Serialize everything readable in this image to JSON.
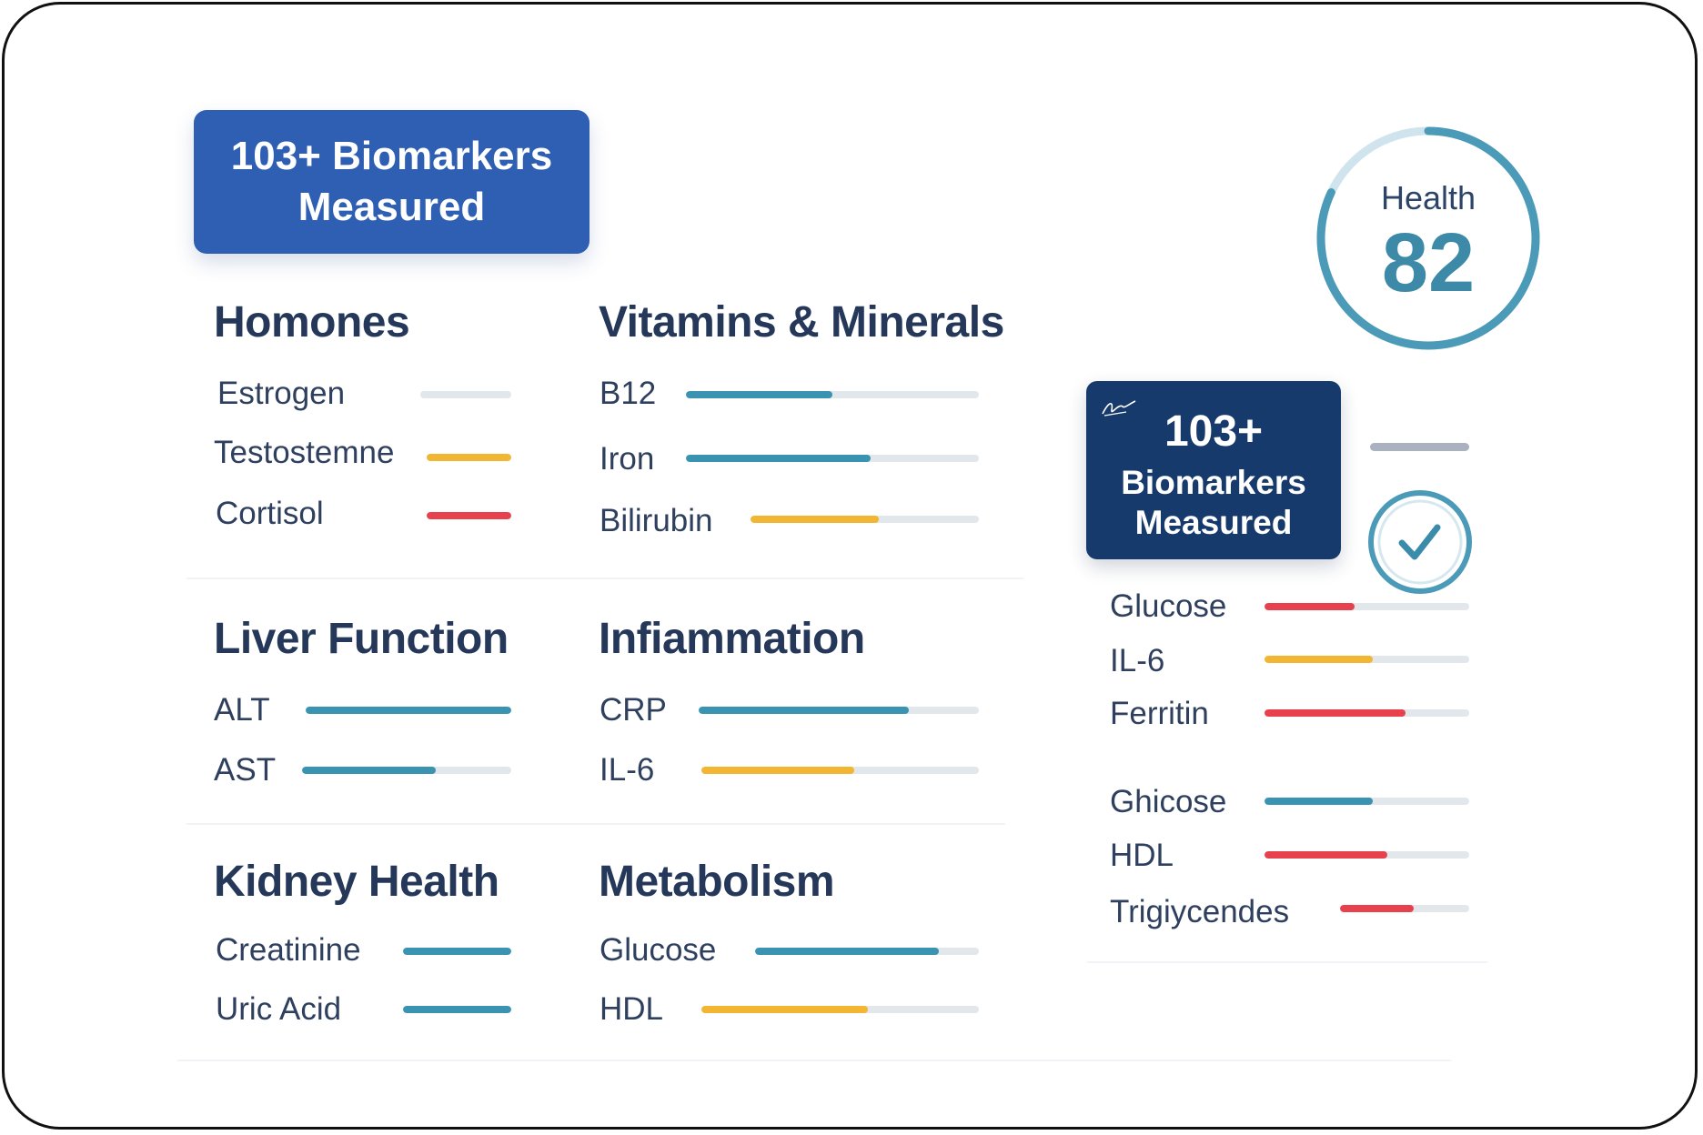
{
  "header_badge": {
    "line1": "103+ Biomarkers",
    "line2": "Measured"
  },
  "sections": {
    "hormones": {
      "title": "Homones",
      "items": [
        {
          "label": "Estrogen",
          "value": 0,
          "color": "#d8dde3"
        },
        {
          "label": "Testostemne",
          "value": 1.0,
          "color": "#f2b632"
        },
        {
          "label": "Cortisol",
          "value": 1.0,
          "color": "#e8414e"
        }
      ]
    },
    "vitamins": {
      "title": "Vitamins & Minerals",
      "items": [
        {
          "label": "B12",
          "value": 0.5,
          "color": "#3b93b2"
        },
        {
          "label": "Iron",
          "value": 0.63,
          "color": "#3b93b2"
        },
        {
          "label": "Bilirubin",
          "value": 0.56,
          "color": "#f2b632"
        }
      ]
    },
    "liver": {
      "title": "Liver Function",
      "items": [
        {
          "label": "ALT",
          "value": 1.0,
          "color": "#3b93b2"
        },
        {
          "label": "AST",
          "value": 0.64,
          "color": "#3b93b2"
        }
      ]
    },
    "inflammation": {
      "title": "Infiammation",
      "items": [
        {
          "label": "CRP",
          "value": 0.75,
          "color": "#3b93b2"
        },
        {
          "label": "IL-6",
          "value": 0.55,
          "color": "#f2b632"
        }
      ]
    },
    "kidney": {
      "title": "Kidney Health",
      "items": [
        {
          "label": "Creatinine",
          "value": 1.0,
          "color": "#3b93b2"
        },
        {
          "label": "Uric Acid",
          "value": 1.0,
          "color": "#3b93b2"
        }
      ]
    },
    "metabolism": {
      "title": "Metabolism",
      "items": [
        {
          "label": "Glucose",
          "value": 0.82,
          "color": "#3b93b2"
        },
        {
          "label": "HDL",
          "value": 0.6,
          "color": "#f2b632"
        }
      ]
    }
  },
  "health_score": {
    "label": "Health",
    "value": "82",
    "ring_fraction": 0.82,
    "ring_color": "#4a9ab8"
  },
  "side_badge": {
    "number": "103+",
    "line1": "Biomarkers",
    "line2": "Measured"
  },
  "side_list": [
    {
      "label": "Glucose",
      "value": 0.44,
      "color": "#e8414e"
    },
    {
      "label": "IL-6",
      "value": 0.53,
      "color": "#f2b632"
    },
    {
      "label": "Ferritin",
      "value": 0.69,
      "color": "#e8414e"
    },
    {
      "label": "Ghicose",
      "value": 0.53,
      "color": "#3b93b2"
    },
    {
      "label": "HDL",
      "value": 0.6,
      "color": "#e8414e"
    },
    {
      "label": "Trigiycendes",
      "value": 0.57,
      "color": "#e8414e"
    }
  ],
  "colors": {
    "primary": "#2f5fb3",
    "dark_navy": "#173a6c",
    "teal": "#3b93b2",
    "amber": "#f2b632",
    "red": "#e8414e"
  }
}
